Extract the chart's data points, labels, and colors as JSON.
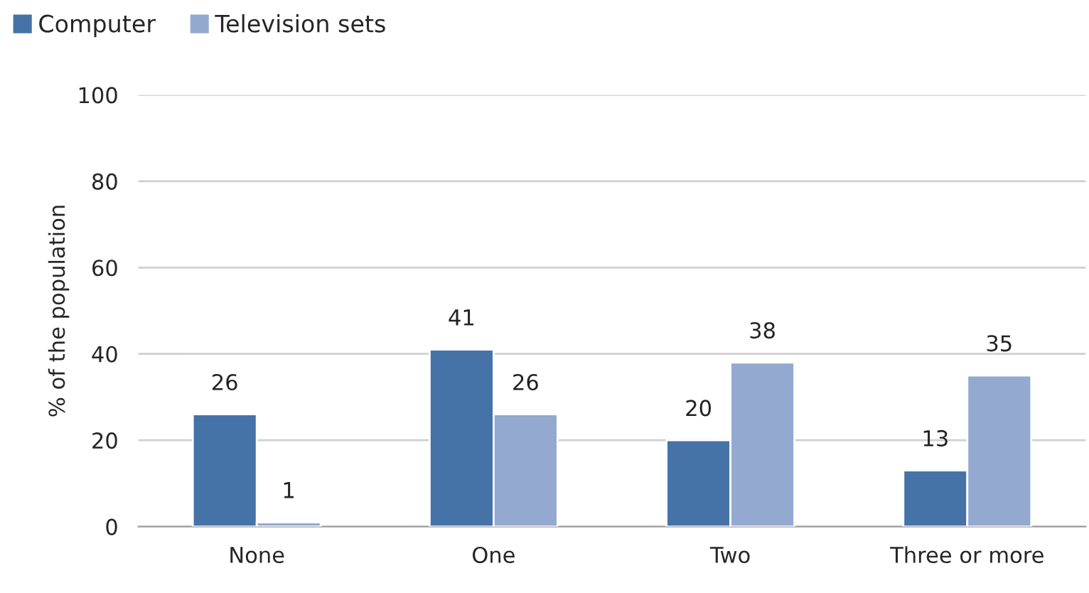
{
  "chart_data": {
    "type": "bar",
    "ylabel": "% of the population",
    "categories": [
      "None",
      "One",
      "Two",
      "Three or more"
    ],
    "series": [
      {
        "name": "Computer",
        "color": "#4573a7",
        "values": [
          26,
          41,
          20,
          13
        ]
      },
      {
        "name": "Television sets",
        "color": "#94a9d0",
        "values": [
          1,
          26,
          38,
          35
        ]
      }
    ],
    "ylim": [
      0,
      100
    ],
    "yticks": [
      0,
      20,
      40,
      60,
      80,
      100
    ],
    "grid": "y",
    "legend": "top left",
    "data_labels": true
  }
}
